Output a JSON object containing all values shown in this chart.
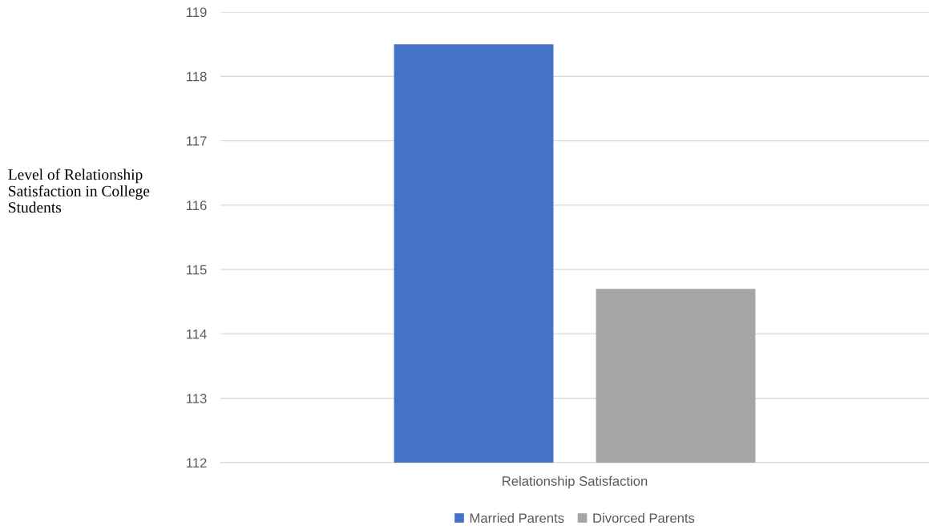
{
  "chart_data": {
    "type": "bar",
    "categories": [
      "Relationship Satisfaction"
    ],
    "series": [
      {
        "name": "Married Parents",
        "color": "#4472c4",
        "values": [
          118.5
        ]
      },
      {
        "name": "Divorced Parents",
        "color": "#a5a5a5",
        "values": [
          114.7
        ]
      }
    ],
    "ylabel": "Level of Relationship\nSatisfaction in College\nStudents",
    "ylim": [
      112,
      119
    ],
    "yticks": [
      112,
      113,
      114,
      115,
      116,
      117,
      118,
      119
    ],
    "grid": "y",
    "legend": "bottom"
  }
}
